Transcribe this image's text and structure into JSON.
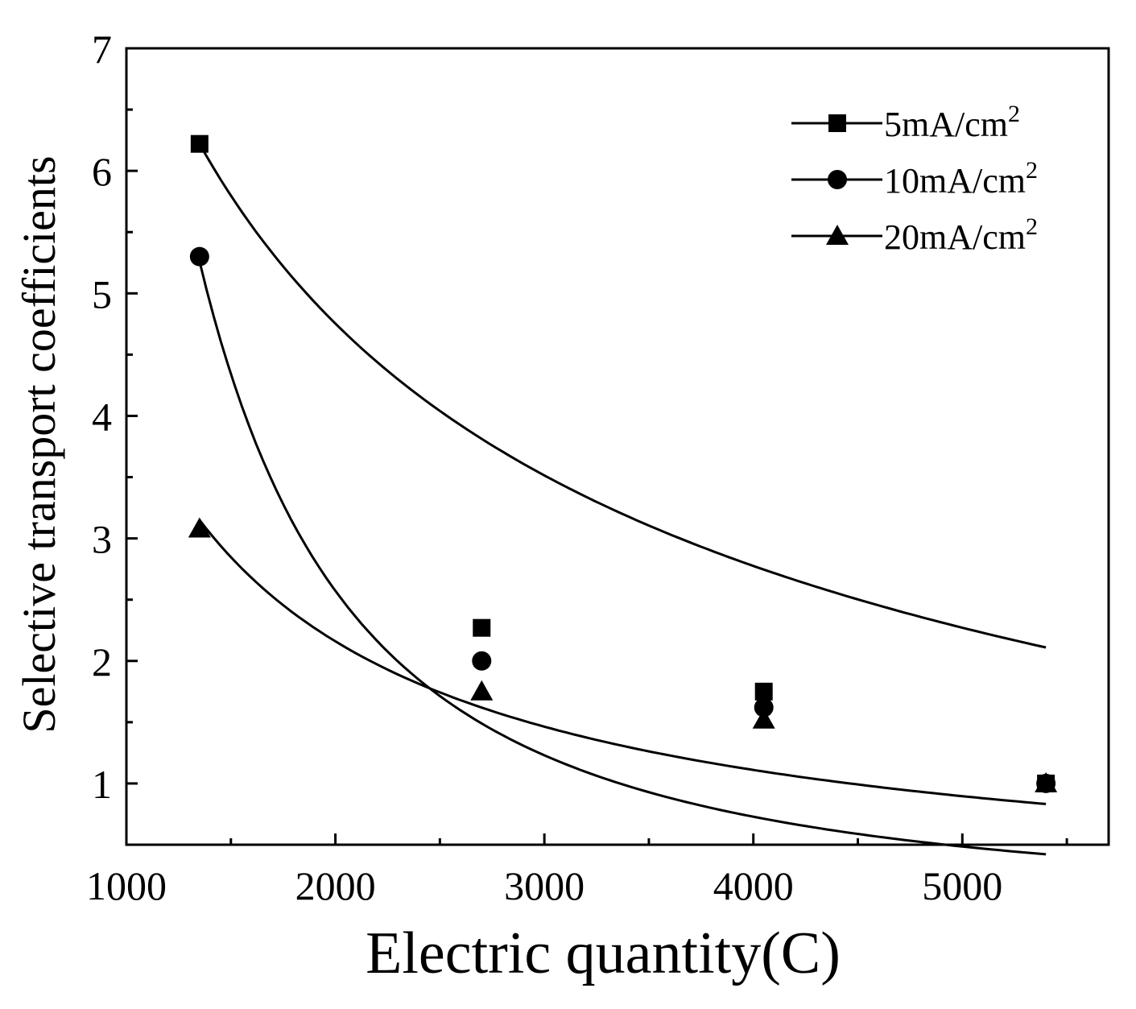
{
  "chart_data": {
    "type": "scatter",
    "title": "",
    "xlabel": "Electric quantity(C)",
    "ylabel": "Selective transport coefficients",
    "xlim": [
      1000,
      5700
    ],
    "ylim": [
      0.5,
      7
    ],
    "x_ticks": [
      1000,
      2000,
      3000,
      4000,
      5000
    ],
    "x_minor_ticks": [
      1500,
      2500,
      3500,
      4500,
      5500
    ],
    "y_ticks": [
      1,
      2,
      3,
      4,
      5,
      6,
      7
    ],
    "y_minor_ticks": [
      1.5,
      2.5,
      3.5,
      4.5,
      5.5,
      6.5
    ],
    "grid": false,
    "legend_position": "top-right",
    "series": [
      {
        "name": "5mA/cm",
        "superscript": "2",
        "marker": "square",
        "x": [
          1350,
          2700,
          4050,
          5400
        ],
        "values": [
          6.22,
          2.27,
          1.75,
          1.0
        ],
        "fit_curve": {
          "a": 8.22,
          "b": 0.5
        }
      },
      {
        "name": "10mA/cm",
        "superscript": "2",
        "marker": "circle",
        "x": [
          1350,
          2700,
          4050,
          5400
        ],
        "values": [
          5.3,
          2.0,
          1.62,
          1.0
        ],
        "fit_curve": {
          "a": 5.26,
          "b": 1.82
        }
      },
      {
        "name": "20mA/cm",
        "superscript": "2",
        "marker": "triangle",
        "x": [
          1350,
          2700,
          4050,
          5400
        ],
        "values": [
          3.08,
          1.75,
          1.52,
          1.0
        ],
        "fit_curve": {
          "a": 3.15,
          "b": 0.96
        }
      }
    ]
  }
}
